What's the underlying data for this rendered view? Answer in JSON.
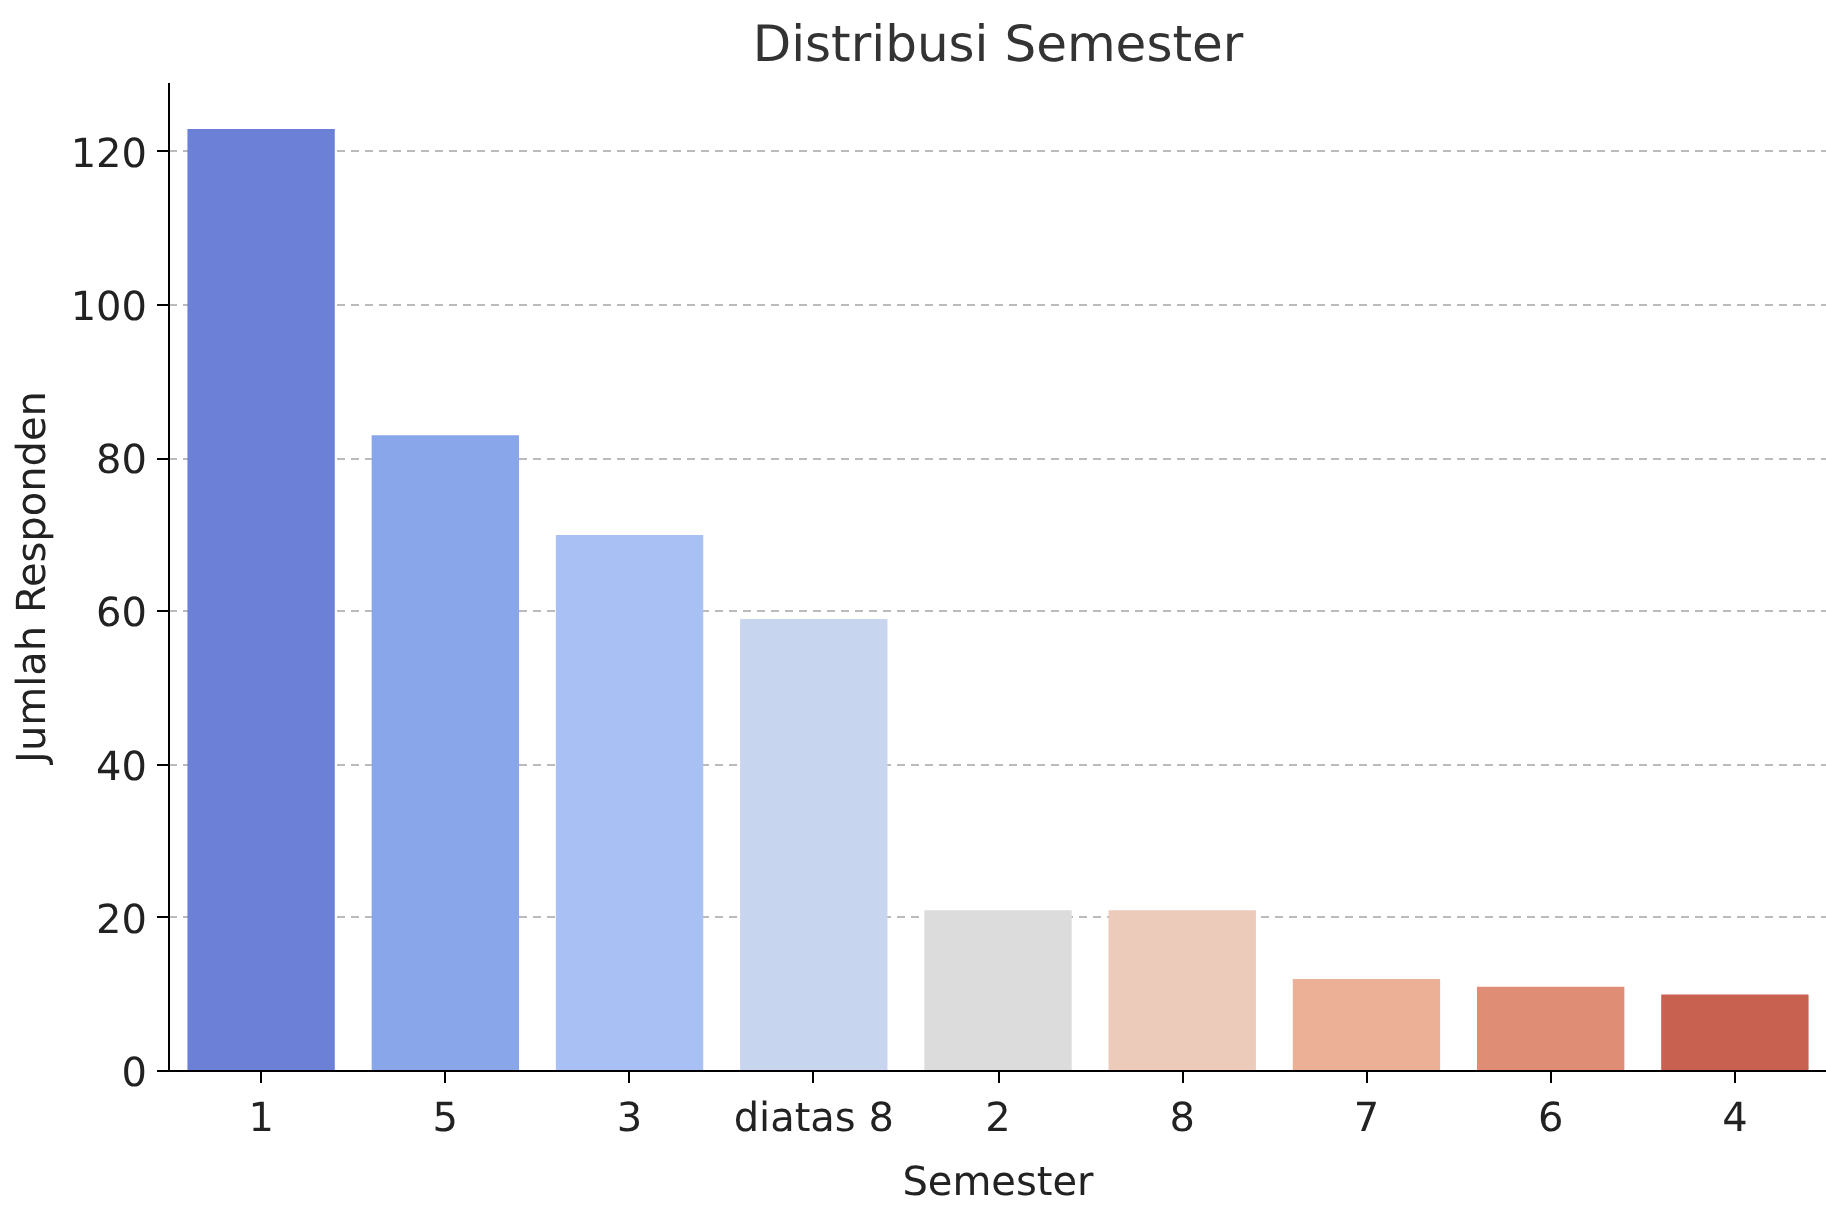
{
  "chart_data": {
    "type": "bar",
    "title": "Distribusi Semester",
    "xlabel": "Semester",
    "ylabel": "Jumlah Responden",
    "categories": [
      "1",
      "5",
      "3",
      "diatas 8",
      "2",
      "8",
      "7",
      "6",
      "4"
    ],
    "values": [
      123,
      83,
      70,
      59,
      21,
      21,
      12,
      11,
      10
    ],
    "colors": [
      "#6b80d6",
      "#8aa6ea",
      "#a9c0f4",
      "#c8d5ef",
      "#dcdcdc",
      "#eccbbb",
      "#ebb095",
      "#e08d76",
      "#c8614f"
    ],
    "ylim": [
      0,
      129
    ],
    "yticks": [
      0,
      20,
      40,
      60,
      80,
      100,
      120
    ],
    "grid": "y"
  }
}
